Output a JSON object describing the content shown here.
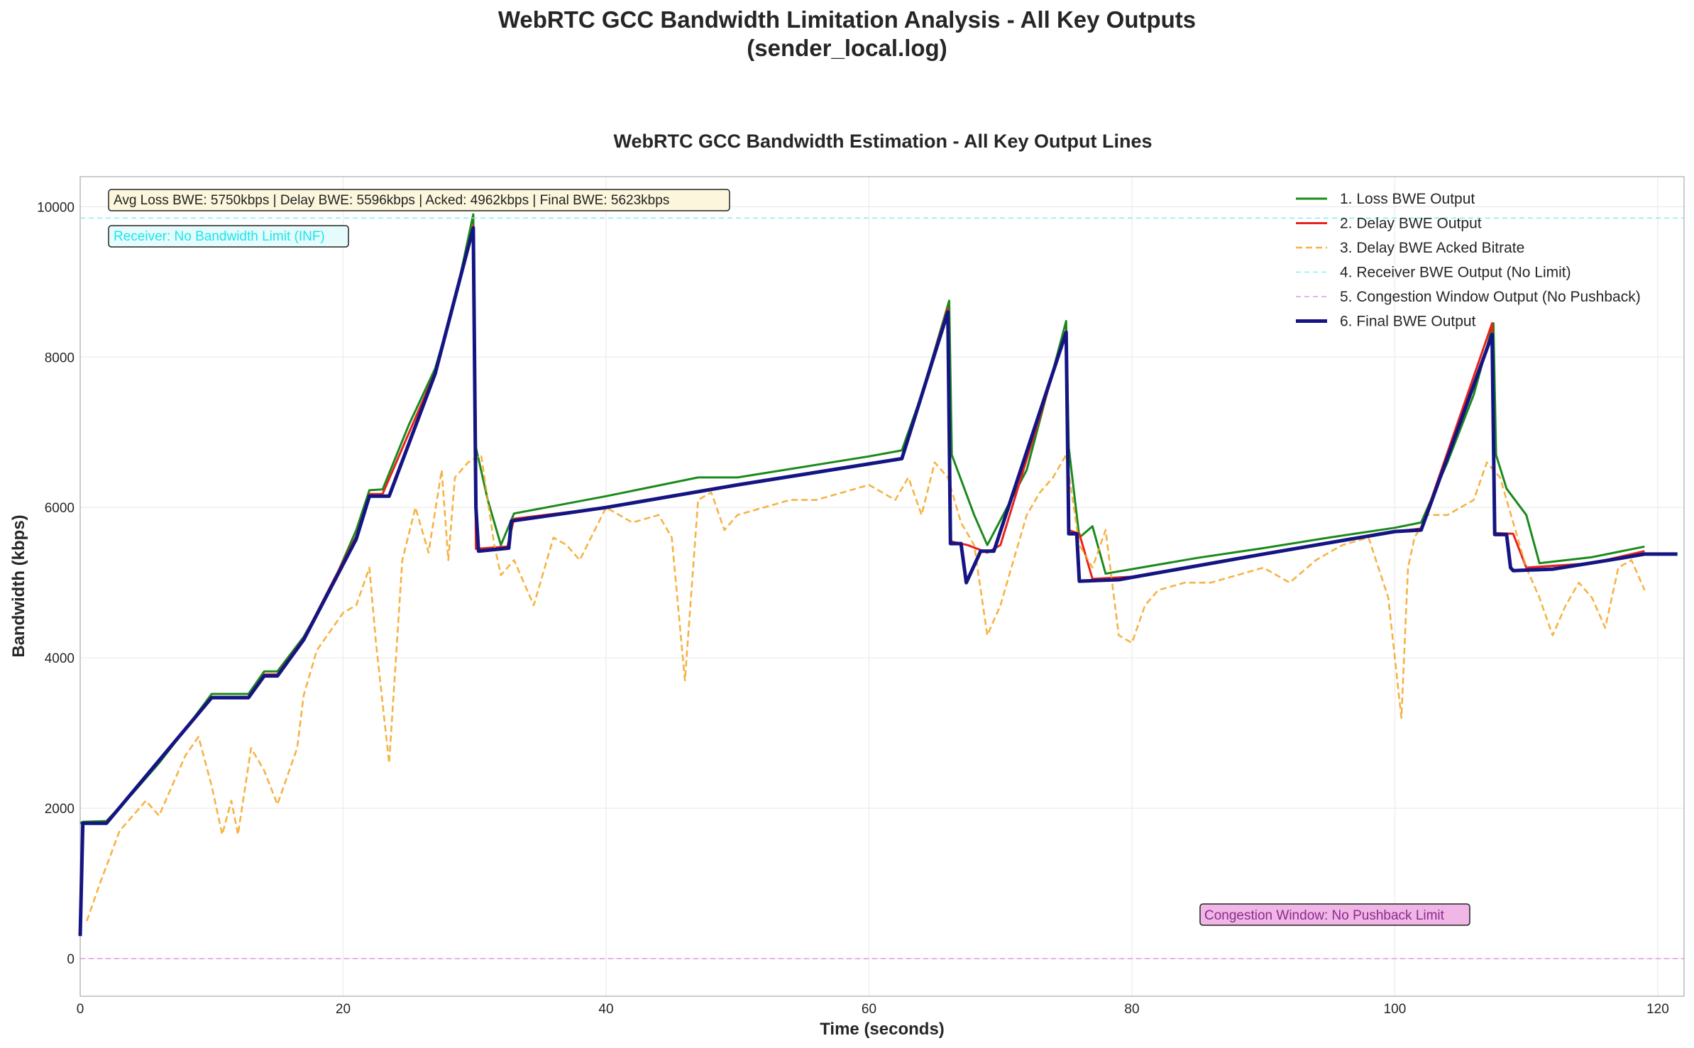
{
  "figure": {
    "title_line1": "WebRTC GCC Bandwidth Limitation Analysis - All Key Outputs",
    "title_line2": "(sender_local.log)"
  },
  "chart_data": {
    "type": "line",
    "title": "WebRTC GCC Bandwidth Estimation - All Key Output Lines",
    "xlabel": "Time (seconds)",
    "ylabel": "Bandwidth (kbps)",
    "xlim": [
      0,
      122
    ],
    "ylim": [
      -500,
      10400
    ],
    "xticks": [
      0,
      20,
      40,
      60,
      80,
      100,
      120
    ],
    "yticks": [
      0,
      2000,
      4000,
      6000,
      8000,
      10000
    ],
    "grid": true,
    "legend_position": "top-right",
    "annotations": {
      "stats_box": "Avg Loss BWE: 5750kbps | Delay BWE: 5596kbps | Acked: 4962kbps | Final BWE: 5623kbps",
      "receiver_box": "Receiver: No Bandwidth Limit (INF)",
      "cwnd_box": "Congestion Window: No Pushback Limit"
    },
    "series": [
      {
        "name": "1. Loss BWE Output",
        "color": "#1a8a1a",
        "style": "solid",
        "x": [
          0,
          0.2,
          2,
          4,
          6,
          8,
          10,
          12.8,
          14,
          15,
          17,
          19,
          21,
          22,
          23,
          25,
          27,
          28.5,
          29.9,
          30.1,
          31,
          32,
          33,
          40,
          47,
          50,
          60,
          62.5,
          64,
          66.1,
          66.3,
          68,
          69,
          72,
          75,
          75.2,
          76,
          77,
          78,
          80,
          85,
          90,
          95,
          100,
          102,
          104,
          106,
          107.5,
          107.7,
          108.5,
          110,
          111,
          115,
          119
        ],
        "y": [
          1800,
          1820,
          1830,
          2200,
          2600,
          3050,
          3520,
          3520,
          3820,
          3820,
          4280,
          4900,
          5700,
          6230,
          6240,
          7100,
          7850,
          8750,
          9900,
          6800,
          6100,
          5500,
          5920,
          6150,
          6400,
          6400,
          6680,
          6760,
          7500,
          8750,
          6700,
          5900,
          5500,
          6500,
          8480,
          6800,
          5600,
          5750,
          5120,
          5180,
          5330,
          5460,
          5600,
          5730,
          5800,
          6600,
          7500,
          8450,
          6700,
          6250,
          5900,
          5260,
          5340,
          5480
        ]
      },
      {
        "name": "2. Delay BWE Output",
        "color": "#e8221c",
        "style": "solid",
        "x": [
          0,
          0.2,
          2,
          10,
          12.8,
          14,
          15,
          17,
          21,
          22,
          23,
          27,
          29.9,
          30.1,
          32.5,
          33,
          40,
          50,
          62.5,
          66,
          66.2,
          67.5,
          69,
          70,
          75,
          75.2,
          76,
          77,
          80,
          90,
          100,
          102,
          107.4,
          107.6,
          109,
          110,
          115,
          119
        ],
        "y": [
          300,
          1800,
          1810,
          3480,
          3480,
          3780,
          3780,
          4260,
          5620,
          6180,
          6180,
          7800,
          9750,
          5450,
          5480,
          5850,
          6000,
          6300,
          6650,
          8650,
          5550,
          5500,
          5400,
          5500,
          8350,
          5700,
          5650,
          5050,
          5080,
          5380,
          5680,
          5720,
          8450,
          5660,
          5650,
          5200,
          5260,
          5420
        ]
      },
      {
        "name": "3. Delay BWE Acked Bitrate",
        "color": "#f5a623",
        "style": "dashed",
        "x": [
          0.5,
          1.5,
          3,
          5,
          6,
          8,
          9,
          10,
          10.8,
          11.5,
          12,
          13,
          14,
          15,
          16.5,
          17,
          18,
          20,
          21,
          22,
          22.5,
          23.5,
          24.5,
          25.5,
          26.5,
          27.5,
          28,
          28.5,
          29.5,
          30.5,
          31.5,
          32,
          33,
          34.5,
          36,
          37,
          38,
          40,
          42,
          44,
          45,
          46,
          47,
          48,
          49,
          50,
          52,
          54,
          56,
          58,
          60,
          62,
          63,
          64,
          65,
          66,
          67,
          68,
          69,
          70,
          71,
          72,
          73,
          74,
          75,
          76,
          77,
          78,
          79,
          80,
          81,
          82,
          84,
          86,
          88,
          90,
          92,
          94,
          96,
          98,
          99.5,
          100.5,
          101,
          101.5,
          102.5,
          104,
          106,
          107,
          108,
          109,
          110,
          111,
          112,
          113,
          114,
          115,
          116,
          117,
          118,
          119
        ],
        "y": [
          500,
          1000,
          1700,
          2100,
          1900,
          2700,
          2950,
          2300,
          1650,
          2100,
          1650,
          2800,
          2500,
          2050,
          2800,
          3500,
          4100,
          4600,
          4700,
          5200,
          4200,
          2600,
          5300,
          6000,
          5400,
          6500,
          5300,
          6400,
          6600,
          6700,
          5500,
          5100,
          5300,
          4700,
          5600,
          5500,
          5300,
          6000,
          5800,
          5900,
          5600,
          3700,
          6100,
          6200,
          5700,
          5900,
          6000,
          6100,
          6100,
          6200,
          6300,
          6100,
          6400,
          5900,
          6600,
          6400,
          5800,
          5500,
          4300,
          4700,
          5300,
          5900,
          6200,
          6400,
          6700,
          5500,
          5200,
          5700,
          4300,
          4200,
          4700,
          4900,
          5000,
          5000,
          5100,
          5200,
          5000,
          5300,
          5500,
          5600,
          4800,
          3200,
          5200,
          5600,
          5900,
          5900,
          6100,
          6600,
          6400,
          5800,
          5200,
          4800,
          4300,
          4700,
          5000,
          4800,
          4400,
          5200,
          5300,
          4900
        ]
      },
      {
        "name": "4. Receiver BWE Output (No Limit)",
        "color": "#7fe9ee",
        "style": "dashed",
        "x": [
          0,
          122
        ],
        "y": [
          9850,
          9850
        ]
      },
      {
        "name": "5. Congestion Window Output (No Pushback)",
        "color": "#e08fd2",
        "style": "dashed",
        "x": [
          0,
          122
        ],
        "y": [
          0,
          0
        ]
      },
      {
        "name": "6. Final BWE Output",
        "color": "#141483",
        "style": "solid",
        "x": [
          0,
          0.2,
          2,
          10,
          12.8,
          14,
          15,
          17,
          21,
          22,
          23.5,
          27,
          29.9,
          30.1,
          30.3,
          32.6,
          32.8,
          40,
          50,
          62.5,
          66,
          66.2,
          67,
          67.4,
          68.5,
          69.5,
          75,
          75.2,
          75.8,
          76,
          79,
          90,
          100,
          102,
          107.4,
          107.6,
          108.5,
          108.8,
          109,
          112,
          117,
          119,
          121.5
        ],
        "y": [
          300,
          1800,
          1800,
          3470,
          3470,
          3760,
          3760,
          4240,
          5580,
          6150,
          6150,
          7780,
          9720,
          6000,
          5420,
          5460,
          5820,
          6000,
          6300,
          6650,
          8600,
          5520,
          5520,
          5000,
          5420,
          5420,
          8330,
          5650,
          5650,
          5020,
          5040,
          5380,
          5680,
          5700,
          8300,
          5640,
          5640,
          5200,
          5160,
          5180,
          5320,
          5380,
          5380
        ]
      }
    ]
  }
}
